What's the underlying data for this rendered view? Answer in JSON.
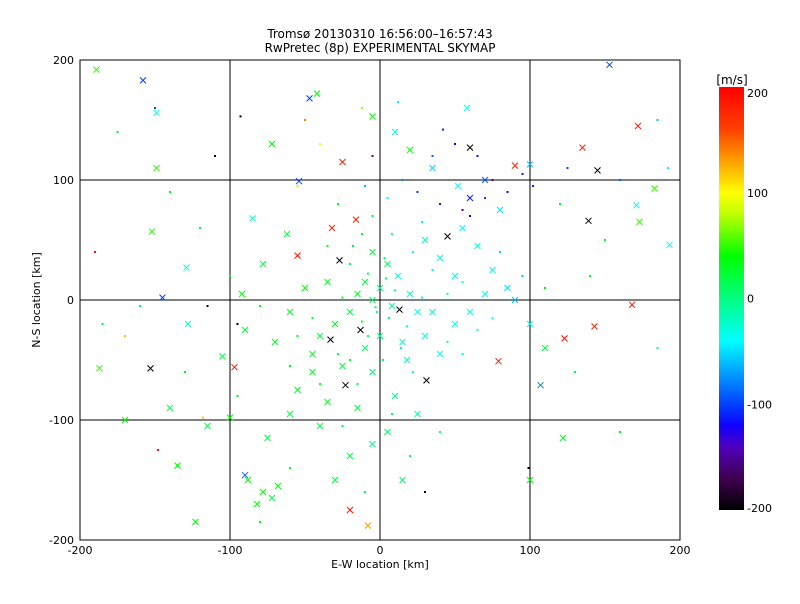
{
  "chart_data": {
    "type": "scatter",
    "title": "Tromsø 20130310 16:56:00–16:57:43",
    "subtitle": "RwPretec (8p) EXPERIMENTAL SKYMAP",
    "xlabel": "E-W location [km]",
    "ylabel": "N-S location [km]",
    "xlim": [
      -200,
      200
    ],
    "ylim": [
      -200,
      200
    ],
    "xticks": [
      "-200",
      "-100",
      "0",
      "100",
      "200"
    ],
    "yticks": [
      "200",
      "100",
      "0",
      "-100",
      "-200"
    ],
    "xtick_values": [
      -200,
      -100,
      0,
      100,
      200
    ],
    "ytick_values": [
      200,
      100,
      0,
      -100,
      -200
    ],
    "grid": true,
    "colorbar": {
      "label": "[m/s]",
      "range": [
        -200,
        200
      ],
      "tick_labels": [
        "200",
        "100",
        "0",
        "-100",
        "-200"
      ],
      "tick_values": [
        200,
        100,
        0,
        -100,
        -200
      ],
      "colormap": [
        [
          -200,
          "#000000"
        ],
        [
          -170,
          "#400050"
        ],
        [
          -140,
          "#5000c0"
        ],
        [
          -120,
          "#1000ff"
        ],
        [
          -100,
          "#0040ff"
        ],
        [
          -60,
          "#00c0ff"
        ],
        [
          -40,
          "#00ffff"
        ],
        [
          0,
          "#00ff80"
        ],
        [
          40,
          "#00ff00"
        ],
        [
          80,
          "#c0ff00"
        ],
        [
          100,
          "#ffff00"
        ],
        [
          130,
          "#ffa000"
        ],
        [
          160,
          "#ff4000"
        ],
        [
          200,
          "#ff0000"
        ]
      ]
    },
    "point_fields": [
      "x_km",
      "y_km",
      "velocity_ms",
      "marker"
    ],
    "points": [
      [
        -158,
        183,
        -100,
        "x"
      ],
      [
        153,
        196,
        -100,
        "x"
      ],
      [
        172,
        145,
        180,
        "x"
      ],
      [
        135,
        127,
        180,
        "x"
      ],
      [
        145,
        108,
        -200,
        "x"
      ],
      [
        139,
        66,
        -200,
        "x"
      ],
      [
        168,
        -4,
        190,
        "x"
      ],
      [
        123,
        -32,
        190,
        "x"
      ],
      [
        143,
        -22,
        180,
        "x"
      ],
      [
        79,
        -51,
        190,
        "x"
      ],
      [
        107,
        -71,
        -80,
        "x"
      ],
      [
        60,
        127,
        -200,
        "x"
      ],
      [
        45,
        53,
        -200,
        "x"
      ],
      [
        -145,
        2,
        -100,
        "x"
      ],
      [
        -153,
        -57,
        -200,
        "x"
      ],
      [
        -97,
        -56,
        190,
        "x"
      ],
      [
        -20,
        -175,
        190,
        "x"
      ],
      [
        -8,
        -188,
        130,
        "x"
      ],
      [
        -90,
        -146,
        -90,
        "x"
      ],
      [
        -27,
        33,
        -200,
        "x"
      ],
      [
        -13,
        -25,
        -200,
        "x"
      ],
      [
        -33,
        -33,
        -200,
        "x"
      ],
      [
        -23,
        -71,
        -200,
        "x"
      ],
      [
        31,
        -67,
        -200,
        "x"
      ],
      [
        13,
        -8,
        -200,
        "x"
      ],
      [
        -47,
        168,
        -100,
        "x"
      ],
      [
        -54,
        99,
        -100,
        "x"
      ],
      [
        -25,
        115,
        180,
        "x"
      ],
      [
        -55,
        37,
        190,
        "x"
      ],
      [
        -32,
        60,
        180,
        "x"
      ],
      [
        -16,
        67,
        180,
        "x"
      ],
      [
        173,
        65,
        50,
        "x"
      ],
      [
        183,
        93,
        50,
        "x"
      ],
      [
        193,
        46,
        -30,
        "x"
      ],
      [
        171,
        79,
        -30,
        "x"
      ],
      [
        -189,
        192,
        50,
        "x"
      ],
      [
        -149,
        156,
        -30,
        "x"
      ],
      [
        -149,
        110,
        50,
        "x"
      ],
      [
        -129,
        27,
        -30,
        "x"
      ],
      [
        -152,
        57,
        50,
        "x"
      ],
      [
        -187,
        -57,
        50,
        "x"
      ],
      [
        -123,
        -185,
        40,
        "x"
      ],
      [
        -88,
        -150,
        40,
        "x"
      ],
      [
        -78,
        -160,
        40,
        "x"
      ],
      [
        -72,
        -165,
        20,
        "x"
      ],
      [
        -68,
        -155,
        40,
        "x"
      ],
      [
        -82,
        -170,
        40,
        "x"
      ],
      [
        -100,
        -98,
        40,
        "x"
      ],
      [
        -115,
        -105,
        20,
        "x"
      ],
      [
        -135,
        -138,
        40,
        "x"
      ],
      [
        -128,
        -20,
        -20,
        "x"
      ],
      [
        -105,
        -47,
        20,
        "x"
      ],
      [
        -90,
        -25,
        20,
        "x"
      ],
      [
        -92,
        5,
        40,
        "x"
      ],
      [
        -78,
        30,
        20,
        "x"
      ],
      [
        -62,
        55,
        20,
        "x"
      ],
      [
        -85,
        68,
        -20,
        "x"
      ],
      [
        -72,
        130,
        40,
        "x"
      ],
      [
        -42,
        172,
        40,
        "x"
      ],
      [
        -5,
        153,
        40,
        "x"
      ],
      [
        10,
        140,
        -30,
        "x"
      ],
      [
        20,
        125,
        40,
        "x"
      ],
      [
        35,
        110,
        -50,
        "x"
      ],
      [
        52,
        95,
        -40,
        "x"
      ],
      [
        60,
        85,
        -110,
        "x"
      ],
      [
        70,
        100,
        -90,
        "x"
      ],
      [
        80,
        75,
        -50,
        "x"
      ],
      [
        90,
        112,
        180,
        "x"
      ],
      [
        100,
        113,
        -60,
        "x"
      ],
      [
        58,
        160,
        -40,
        "x"
      ],
      [
        -5,
        40,
        20,
        "x"
      ],
      [
        5,
        30,
        10,
        "x"
      ],
      [
        12,
        20,
        -30,
        "x"
      ],
      [
        -10,
        15,
        20,
        "x"
      ],
      [
        0,
        10,
        0,
        "x"
      ],
      [
        -5,
        0,
        10,
        "x"
      ],
      [
        8,
        -5,
        -10,
        "x"
      ],
      [
        -15,
        5,
        30,
        "x"
      ],
      [
        20,
        5,
        -20,
        "x"
      ],
      [
        25,
        -10,
        -30,
        "x"
      ],
      [
        -20,
        -10,
        20,
        "x"
      ],
      [
        -30,
        -20,
        30,
        "x"
      ],
      [
        -40,
        -30,
        20,
        "x"
      ],
      [
        -10,
        -40,
        10,
        "x"
      ],
      [
        0,
        -30,
        0,
        "x"
      ],
      [
        15,
        -35,
        -20,
        "x"
      ],
      [
        30,
        -30,
        -30,
        "x"
      ],
      [
        40,
        -45,
        -35,
        "x"
      ],
      [
        -25,
        -55,
        20,
        "x"
      ],
      [
        -45,
        -60,
        30,
        "x"
      ],
      [
        -5,
        -60,
        10,
        "x"
      ],
      [
        10,
        -80,
        0,
        "x"
      ],
      [
        -15,
        -90,
        20,
        "x"
      ],
      [
        -35,
        -85,
        30,
        "x"
      ],
      [
        -55,
        -75,
        30,
        "x"
      ],
      [
        5,
        -110,
        10,
        "x"
      ],
      [
        -5,
        -120,
        0,
        "x"
      ],
      [
        -20,
        -130,
        20,
        "x"
      ],
      [
        -40,
        -105,
        20,
        "x"
      ],
      [
        25,
        -95,
        -10,
        "x"
      ],
      [
        50,
        -20,
        -35,
        "x"
      ],
      [
        60,
        -10,
        -35,
        "x"
      ],
      [
        70,
        5,
        -40,
        "x"
      ],
      [
        85,
        10,
        -50,
        "x"
      ],
      [
        75,
        25,
        -30,
        "x"
      ],
      [
        50,
        20,
        -30,
        "x"
      ],
      [
        40,
        35,
        -30,
        "x"
      ],
      [
        30,
        50,
        -20,
        "x"
      ],
      [
        55,
        60,
        -40,
        "x"
      ],
      [
        65,
        45,
        -30,
        "x"
      ],
      [
        90,
        0,
        -60,
        "x"
      ],
      [
        100,
        -20,
        -30,
        "x"
      ],
      [
        110,
        -40,
        20,
        "x"
      ],
      [
        -60,
        -10,
        30,
        "x"
      ],
      [
        -70,
        -35,
        30,
        "x"
      ],
      [
        -50,
        10,
        40,
        "x"
      ],
      [
        -35,
        15,
        30,
        "x"
      ],
      [
        -45,
        -45,
        30,
        "x"
      ],
      [
        18,
        -50,
        -20,
        "x"
      ],
      [
        35,
        -10,
        -25,
        "x"
      ],
      [
        -60,
        -95,
        20,
        "x"
      ],
      [
        -75,
        -115,
        20,
        "x"
      ],
      [
        -30,
        -150,
        20,
        "x"
      ],
      [
        15,
        -150,
        10,
        "x"
      ],
      [
        100,
        -150,
        40,
        "x"
      ],
      [
        122,
        -115,
        30,
        "x"
      ],
      [
        -170,
        -100,
        40,
        "x"
      ],
      [
        -140,
        -90,
        20,
        "x"
      ],
      [
        -93,
        153,
        -200,
        "."
      ],
      [
        -110,
        120,
        -200,
        "."
      ],
      [
        -5,
        120,
        -150,
        "."
      ],
      [
        42,
        142,
        -110,
        "."
      ],
      [
        50,
        130,
        -120,
        "."
      ],
      [
        65,
        120,
        -130,
        "."
      ],
      [
        75,
        100,
        -150,
        "."
      ],
      [
        85,
        90,
        -120,
        "."
      ],
      [
        95,
        105,
        -140,
        "."
      ],
      [
        102,
        95,
        -110,
        "."
      ],
      [
        40,
        80,
        -110,
        "."
      ],
      [
        55,
        75,
        -150,
        "."
      ],
      [
        70,
        85,
        -100,
        "."
      ],
      [
        60,
        70,
        -120,
        "."
      ],
      [
        25,
        90,
        -100,
        "."
      ],
      [
        15,
        100,
        -80,
        "."
      ],
      [
        -10,
        95,
        -60,
        "."
      ],
      [
        35,
        120,
        -90,
        "."
      ],
      [
        -150,
        160,
        -100,
        "."
      ],
      [
        125,
        110,
        -100,
        "."
      ],
      [
        160,
        100,
        -90,
        "."
      ],
      [
        185,
        150,
        -60,
        "."
      ],
      [
        192,
        110,
        -40,
        "."
      ],
      [
        -190,
        40,
        190,
        "."
      ],
      [
        -170,
        -30,
        120,
        "."
      ],
      [
        -148,
        -125,
        190,
        "."
      ],
      [
        -118,
        -98,
        120,
        "."
      ],
      [
        -55,
        95,
        80,
        "."
      ],
      [
        -40,
        130,
        90,
        "."
      ],
      [
        -12,
        160,
        70,
        "."
      ],
      [
        -20,
        30,
        20,
        "."
      ],
      [
        -8,
        22,
        10,
        "."
      ],
      [
        4,
        18,
        0,
        "."
      ],
      [
        10,
        8,
        -10,
        "."
      ],
      [
        -3,
        -6,
        20,
        "."
      ],
      [
        6,
        -15,
        0,
        "."
      ],
      [
        -12,
        -18,
        20,
        "."
      ],
      [
        18,
        -22,
        -20,
        "."
      ],
      [
        -25,
        2,
        30,
        "."
      ],
      [
        28,
        2,
        -30,
        "."
      ],
      [
        -18,
        45,
        30,
        "."
      ],
      [
        8,
        55,
        -20,
        "."
      ],
      [
        22,
        40,
        -40,
        "."
      ],
      [
        -35,
        45,
        40,
        "."
      ],
      [
        -5,
        70,
        30,
        "."
      ],
      [
        -45,
        -15,
        30,
        "."
      ],
      [
        -55,
        -30,
        30,
        "."
      ],
      [
        -28,
        -45,
        20,
        "."
      ],
      [
        2,
        -50,
        10,
        "."
      ],
      [
        22,
        -60,
        -20,
        "."
      ],
      [
        -15,
        -70,
        20,
        "."
      ],
      [
        -40,
        -70,
        30,
        "."
      ],
      [
        -60,
        -55,
        40,
        "."
      ],
      [
        8,
        -95,
        10,
        "."
      ],
      [
        -25,
        -105,
        20,
        "."
      ],
      [
        45,
        -35,
        -30,
        "."
      ],
      [
        55,
        -45,
        -35,
        "."
      ],
      [
        65,
        -25,
        -40,
        "."
      ],
      [
        75,
        -15,
        -40,
        "."
      ],
      [
        45,
        5,
        -30,
        "."
      ],
      [
        55,
        15,
        -40,
        "."
      ],
      [
        35,
        25,
        -30,
        "."
      ],
      [
        80,
        40,
        -50,
        "."
      ],
      [
        95,
        20,
        -60,
        "."
      ],
      [
        110,
        10,
        40,
        "."
      ],
      [
        -80,
        -5,
        40,
        "."
      ],
      [
        -100,
        20,
        40,
        "."
      ],
      [
        -95,
        -80,
        30,
        "."
      ],
      [
        -130,
        -60,
        40,
        "."
      ],
      [
        -160,
        -5,
        20,
        "."
      ],
      [
        -185,
        -20,
        20,
        "."
      ],
      [
        -140,
        90,
        40,
        "."
      ],
      [
        -120,
        60,
        20,
        "."
      ],
      [
        -175,
        140,
        40,
        "."
      ],
      [
        150,
        50,
        40,
        "."
      ],
      [
        130,
        -60,
        20,
        "."
      ],
      [
        160,
        -110,
        40,
        "."
      ],
      [
        185,
        -40,
        -20,
        "."
      ],
      [
        120,
        80,
        30,
        "."
      ],
      [
        140,
        20,
        40,
        "."
      ],
      [
        -60,
        -140,
        40,
        "."
      ],
      [
        -10,
        -160,
        20,
        "."
      ],
      [
        20,
        -130,
        10,
        "."
      ],
      [
        40,
        -110,
        10,
        "."
      ],
      [
        -80,
        -185,
        40,
        "."
      ],
      [
        99,
        -140,
        -200,
        "."
      ],
      [
        -115,
        -5,
        -200,
        "."
      ],
      [
        -95,
        -20,
        -200,
        "."
      ],
      [
        30,
        -160,
        -200,
        "."
      ],
      [
        -50,
        150,
        140,
        "."
      ],
      [
        12,
        165,
        -40,
        "."
      ],
      [
        -2,
        -10,
        -20,
        "."
      ],
      [
        -8,
        -30,
        10,
        "."
      ],
      [
        14,
        -40,
        -10,
        "."
      ],
      [
        -20,
        -50,
        30,
        "."
      ],
      [
        3,
        35,
        10,
        "."
      ],
      [
        -12,
        55,
        30,
        "."
      ],
      [
        28,
        65,
        -30,
        "."
      ],
      [
        -28,
        80,
        40,
        "."
      ],
      [
        5,
        85,
        -30,
        "."
      ]
    ]
  }
}
